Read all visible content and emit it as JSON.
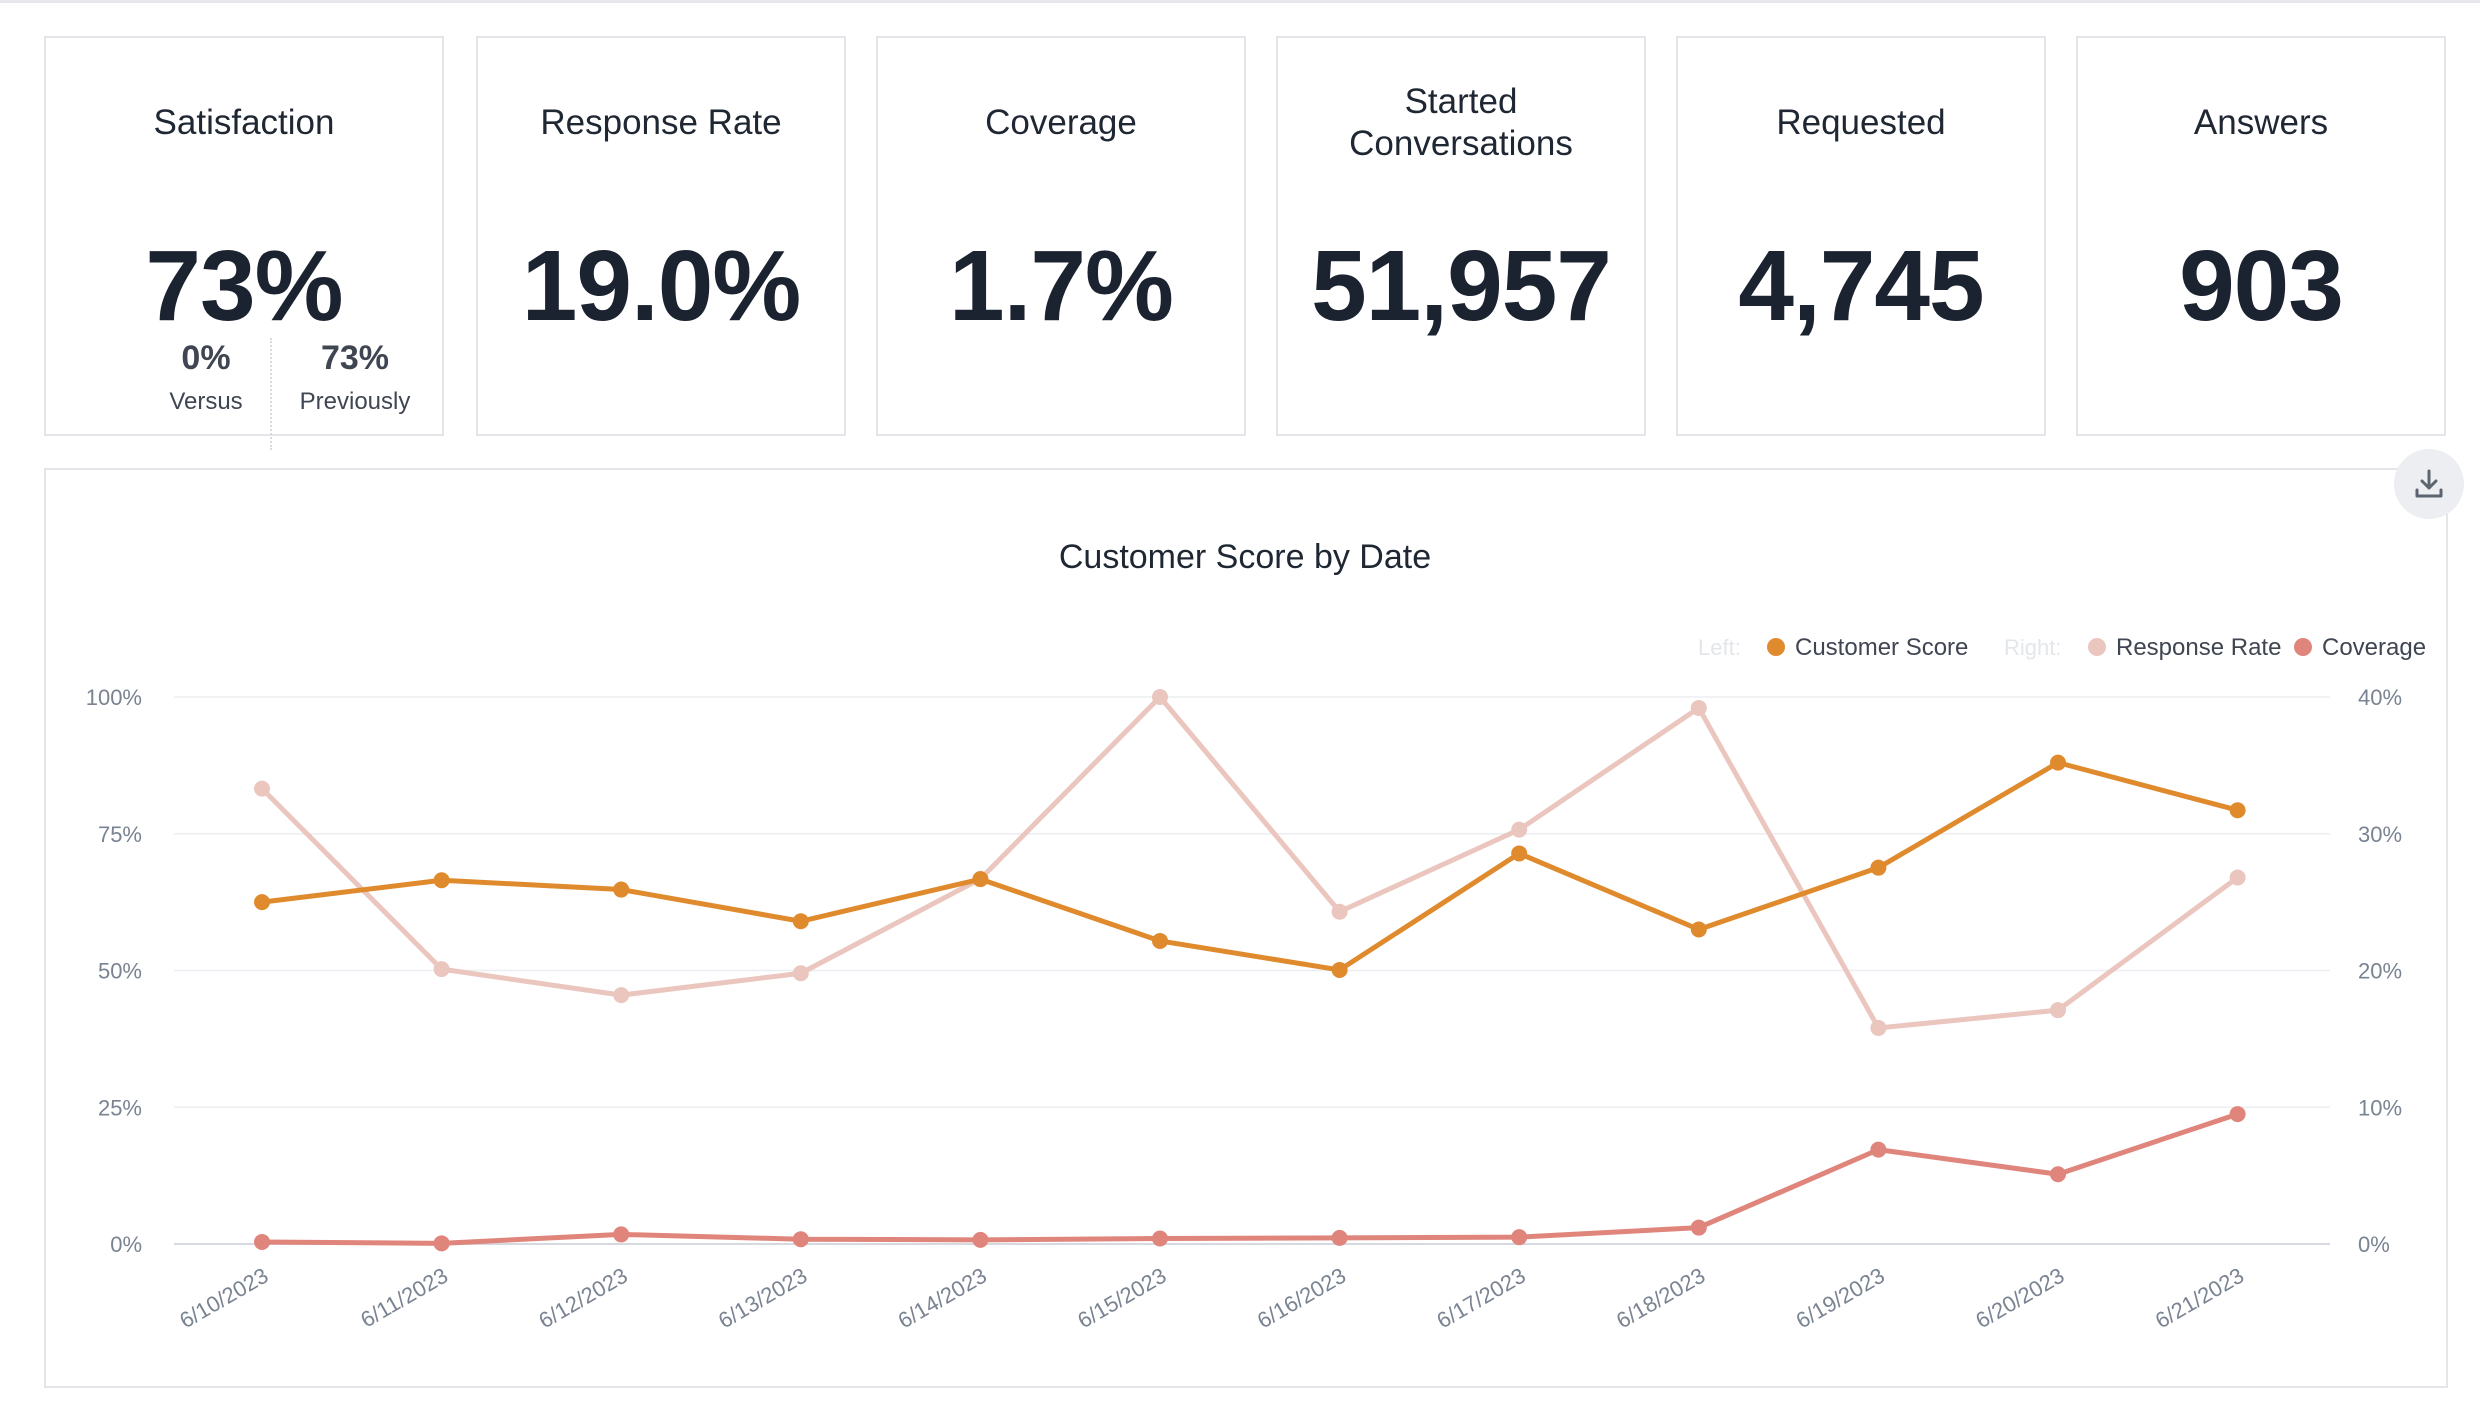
{
  "kpis": {
    "satisfaction": {
      "title": "Satisfaction",
      "value": "73%",
      "versus_value": "0%",
      "versus_label": "Versus",
      "previously_value": "73%",
      "previously_label": "Previously"
    },
    "response_rate": {
      "title": "Response Rate",
      "value": "19.0%"
    },
    "coverage": {
      "title": "Coverage",
      "value": "1.7%"
    },
    "started": {
      "title_line1": "Started",
      "title_line2": "Conversations",
      "value": "51,957"
    },
    "requested": {
      "title": "Requested",
      "value": "4,745"
    },
    "answers": {
      "title": "Answers",
      "value": "903"
    }
  },
  "download": {
    "icon": "download-icon"
  },
  "chart_data": {
    "type": "line",
    "title": "Customer Score by Date",
    "legend": {
      "placement": "top-right",
      "left_label": "Left:",
      "right_label": "Right:"
    },
    "x": [
      "6/10/2023",
      "6/11/2023",
      "6/12/2023",
      "6/13/2023",
      "6/14/2023",
      "6/15/2023",
      "6/16/2023",
      "6/17/2023",
      "6/18/2023",
      "6/19/2023",
      "6/20/2023",
      "6/21/2023"
    ],
    "y_left": {
      "ticks": [
        "100%",
        "75%",
        "50%",
        "25%",
        "0%"
      ],
      "range": [
        0,
        100
      ]
    },
    "y_right": {
      "ticks": [
        "40%",
        "30%",
        "20%",
        "10%",
        "0%"
      ],
      "range": [
        0,
        40
      ]
    },
    "grid": true,
    "series": [
      {
        "name": "Customer Score",
        "axis": "left",
        "color": "#e08a2e",
        "values": [
          62.5,
          66.5,
          64.8,
          59,
          66.7,
          55.4,
          50.1,
          71.4,
          57.5,
          68.8,
          88,
          79.3
        ]
      },
      {
        "name": "Response Rate",
        "axis": "right",
        "color": "#eac6bf",
        "values": [
          33.3,
          20.1,
          18.2,
          19.8,
          26.7,
          40,
          24.3,
          30.3,
          39.2,
          15.8,
          17.1,
          26.8
        ]
      },
      {
        "name": "Coverage",
        "axis": "right",
        "color": "#df857b",
        "values": [
          0.15,
          0.05,
          0.7,
          0.35,
          0.3,
          0.4,
          0.45,
          0.5,
          1.2,
          6.9,
          5.1,
          9.5
        ]
      }
    ]
  }
}
